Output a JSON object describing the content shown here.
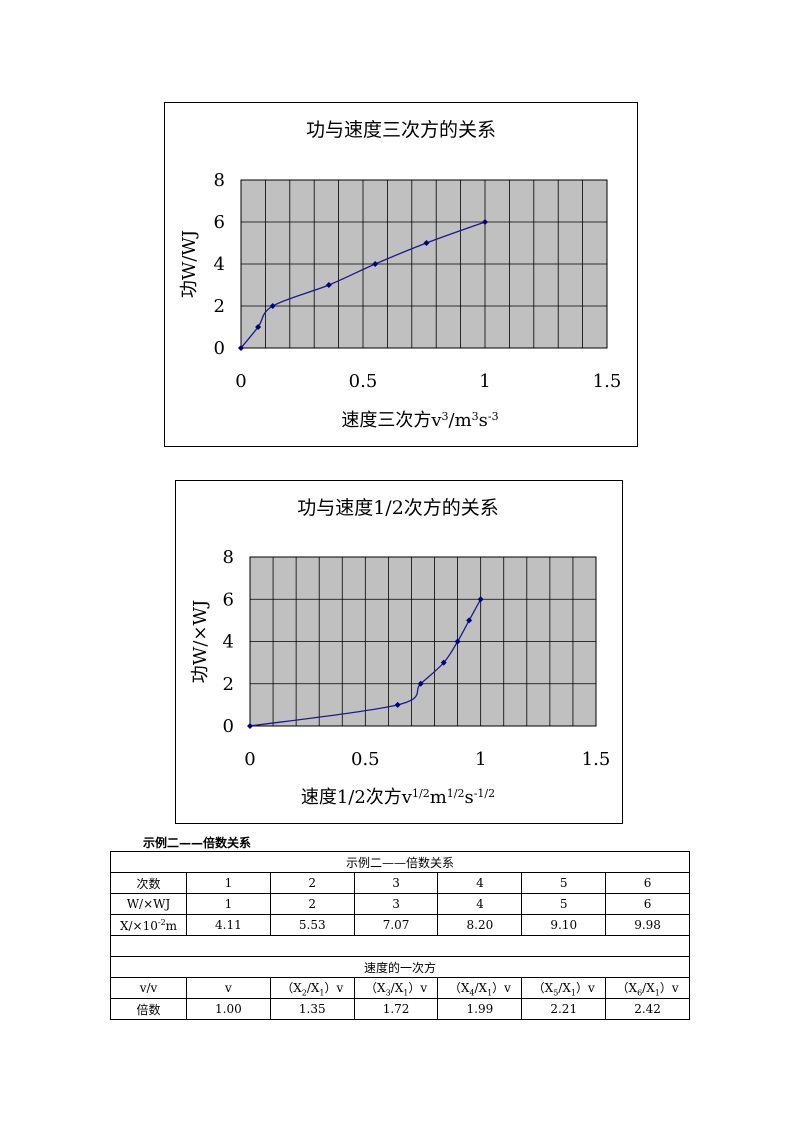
{
  "chart_data": [
    {
      "type": "line",
      "title": "功与速度三次方的关系",
      "xlabel": "速度三次方v",
      "xlabel_unit_parts": [
        "3",
        "/m",
        "3",
        "s",
        "-3"
      ],
      "ylabel": "功W/WJ",
      "xlim": [
        0,
        1.5
      ],
      "ylim": [
        0,
        8
      ],
      "xticks": [
        "0",
        "0.5",
        "1",
        "1.5"
      ],
      "yticks": [
        "0",
        "2",
        "4",
        "6",
        "8"
      ],
      "grid": true,
      "series": [
        {
          "x": [
            0,
            0.07,
            0.13,
            0.36,
            0.55,
            0.76,
            1.0
          ],
          "y": [
            0,
            1,
            2,
            3,
            4,
            5,
            6
          ]
        }
      ],
      "colors": {
        "line": "#1a1a8a",
        "plot_bg": "#c0c0c0"
      }
    },
    {
      "type": "line",
      "title": "功与速度1/2次方的关系",
      "xlabel": "速度1/2次方v",
      "xlabel_unit_parts": [
        "1/2",
        "m",
        "1/2",
        "s",
        "-1/2"
      ],
      "ylabel": "功W/×WJ",
      "xlim": [
        0,
        1.5
      ],
      "ylim": [
        0,
        8
      ],
      "xticks": [
        "0",
        "0.5",
        "1",
        "1.5"
      ],
      "yticks": [
        "0",
        "2",
        "4",
        "6",
        "8"
      ],
      "grid": true,
      "series": [
        {
          "x": [
            0,
            0.64,
            0.74,
            0.84,
            0.9,
            0.95,
            1.0
          ],
          "y": [
            0,
            1,
            2,
            3,
            4,
            5,
            6
          ]
        }
      ],
      "colors": {
        "line": "#1a1a8a",
        "plot_bg": "#c0c0c0"
      }
    }
  ],
  "table": {
    "caption": "示例二——倍数关系",
    "title": "示例二——倍数关系",
    "row1": {
      "label": "次数",
      "values": [
        "1",
        "2",
        "3",
        "4",
        "5",
        "6"
      ]
    },
    "row2": {
      "label": "W/×WJ",
      "values": [
        "1",
        "2",
        "3",
        "4",
        "5",
        "6"
      ]
    },
    "row3": {
      "label": "X/×10",
      "label_sup": "-2",
      "label_tail": "m",
      "values": [
        "4.11",
        "5.53",
        "7.07",
        "8.20",
        "9.10",
        "9.98"
      ]
    },
    "section2_title": "速度的一次方",
    "row4": {
      "label": "v/v",
      "first": "v",
      "ratios": [
        {
          "pre": "（X",
          "num": "2",
          "mid": "/X",
          "den": "1",
          "post": "）v"
        },
        {
          "pre": "（X",
          "num": "3",
          "mid": "/X",
          "den": "1",
          "post": "）v"
        },
        {
          "pre": "（X",
          "num": "4",
          "mid": "/X",
          "den": "1",
          "post": "）v"
        },
        {
          "pre": "（X",
          "num": "5",
          "mid": "/X",
          "den": "1",
          "post": "）v"
        },
        {
          "pre": "（X",
          "num": "6",
          "mid": "/X",
          "den": "1",
          "post": "）v"
        }
      ]
    },
    "row5": {
      "label": "倍数",
      "values": [
        "1.00",
        "1.35",
        "1.72",
        "1.99",
        "2.21",
        "2.42"
      ]
    }
  }
}
